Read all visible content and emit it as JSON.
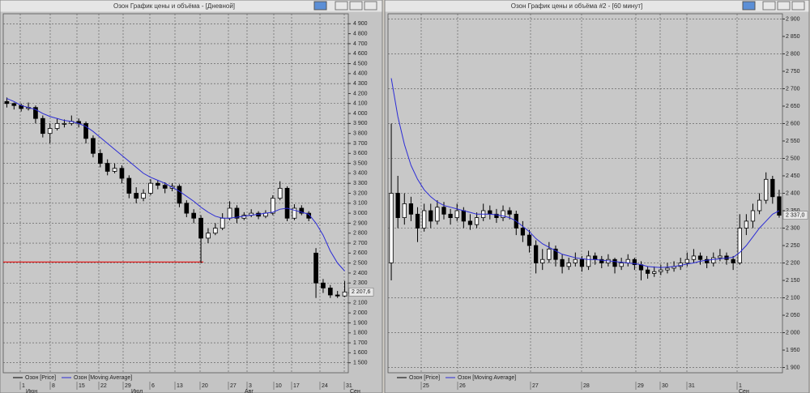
{
  "windows": [
    {
      "title": "Озон График цены и объёма - [Дневной]",
      "chart": {
        "type": "candlestick",
        "ylim": [
          1400,
          5000
        ],
        "yticks": [
          {
            "value": 4900,
            "label": "4 900"
          },
          {
            "value": 4800,
            "label": "4 800"
          },
          {
            "value": 4700,
            "label": "4 700"
          },
          {
            "value": 4600,
            "label": "4 600"
          },
          {
            "value": 4500,
            "label": "4 500"
          },
          {
            "value": 4400,
            "label": "4 400"
          },
          {
            "value": 4300,
            "label": "4 300"
          },
          {
            "value": 4200,
            "label": "4 200"
          },
          {
            "value": 4100,
            "label": "4 100"
          },
          {
            "value": 4000,
            "label": "4 000"
          },
          {
            "value": 3900,
            "label": "3 900"
          },
          {
            "value": 3800,
            "label": "3 800"
          },
          {
            "value": 3700,
            "label": "3 700"
          },
          {
            "value": 3600,
            "label": "3 600"
          },
          {
            "value": 3500,
            "label": "3 500"
          },
          {
            "value": 3400,
            "label": "3 400"
          },
          {
            "value": 3300,
            "label": "3 300"
          },
          {
            "value": 3200,
            "label": "3 200"
          },
          {
            "value": 3100,
            "label": "3 100"
          },
          {
            "value": 3000,
            "label": "3 000"
          },
          {
            "value": 2900,
            "label": "2 900"
          },
          {
            "value": 2800,
            "label": "2 800"
          },
          {
            "value": 2700,
            "label": "2 700"
          },
          {
            "value": 2600,
            "label": "2 600"
          },
          {
            "value": 2500,
            "label": "2 500"
          },
          {
            "value": 2400,
            "label": "2 400"
          },
          {
            "value": 2300,
            "label": "2 300"
          },
          {
            "value": 2200,
            "label": "2 200"
          },
          {
            "value": 2100,
            "label": "2 100"
          },
          {
            "value": 2000,
            "label": "2 000"
          },
          {
            "value": 1900,
            "label": "1 900"
          },
          {
            "value": 1800,
            "label": "1 800"
          },
          {
            "value": 1700,
            "label": "1 700"
          },
          {
            "value": 1600,
            "label": "1 600"
          },
          {
            "value": 1500,
            "label": "1 500"
          }
        ],
        "candles": [
          [
            4120,
            4160,
            4060,
            4100
          ],
          [
            4100,
            4110,
            4040,
            4080
          ],
          [
            4080,
            4100,
            4020,
            4050
          ],
          [
            4050,
            4110,
            4030,
            4060
          ],
          [
            4060,
            4080,
            3900,
            3950
          ],
          [
            3950,
            3980,
            3760,
            3800
          ],
          [
            3800,
            3900,
            3700,
            3850
          ],
          [
            3850,
            3950,
            3830,
            3900
          ],
          [
            3900,
            3940,
            3860,
            3900
          ],
          [
            3900,
            3980,
            3880,
            3920
          ],
          [
            3920,
            3950,
            3860,
            3900
          ],
          [
            3900,
            3920,
            3700,
            3750
          ],
          [
            3750,
            3780,
            3560,
            3600
          ],
          [
            3600,
            3640,
            3460,
            3500
          ],
          [
            3500,
            3540,
            3380,
            3420
          ],
          [
            3420,
            3500,
            3400,
            3450
          ],
          [
            3450,
            3480,
            3300,
            3350
          ],
          [
            3350,
            3380,
            3150,
            3200
          ],
          [
            3200,
            3260,
            3100,
            3150
          ],
          [
            3150,
            3240,
            3120,
            3200
          ],
          [
            3200,
            3340,
            3180,
            3300
          ],
          [
            3300,
            3330,
            3240,
            3280
          ],
          [
            3280,
            3310,
            3200,
            3250
          ],
          [
            3250,
            3300,
            3220,
            3270
          ],
          [
            3270,
            3290,
            3060,
            3100
          ],
          [
            3100,
            3130,
            2960,
            3000
          ],
          [
            3000,
            3040,
            2900,
            2950
          ],
          [
            2950,
            2980,
            2500,
            2750
          ],
          [
            2750,
            2850,
            2700,
            2800
          ],
          [
            2800,
            2900,
            2780,
            2850
          ],
          [
            2850,
            3000,
            2830,
            2950
          ],
          [
            2950,
            3120,
            2930,
            3050
          ],
          [
            3050,
            3080,
            2900,
            2950
          ],
          [
            2950,
            3010,
            2930,
            2980
          ],
          [
            2980,
            3040,
            2960,
            3000
          ],
          [
            3000,
            3020,
            2940,
            2970
          ],
          [
            2970,
            3030,
            2950,
            3000
          ],
          [
            3000,
            3180,
            2980,
            3150
          ],
          [
            3150,
            3320,
            3130,
            3250
          ],
          [
            3250,
            3270,
            2920,
            2950
          ],
          [
            2950,
            3090,
            2930,
            3050
          ],
          [
            3050,
            3080,
            2980,
            3000
          ],
          [
            3000,
            3020,
            2920,
            2950
          ],
          [
            2600,
            2650,
            2150,
            2300
          ],
          [
            2300,
            2340,
            2200,
            2250
          ],
          [
            2250,
            2280,
            2150,
            2180
          ],
          [
            2180,
            2220,
            2150,
            2170
          ],
          [
            2170,
            2320,
            2160,
            2210
          ]
        ],
        "moving_average": [
          4150,
          4120,
          4080,
          4060,
          4040,
          4000,
          3970,
          3950,
          3930,
          3920,
          3900,
          3870,
          3820,
          3760,
          3700,
          3640,
          3580,
          3520,
          3460,
          3400,
          3360,
          3330,
          3300,
          3260,
          3220,
          3170,
          3120,
          3060,
          3010,
          2970,
          2950,
          2950,
          2960,
          2970,
          2980,
          2990,
          3000,
          3010,
          3040,
          3050,
          3030,
          3010,
          2990,
          2900,
          2780,
          2620,
          2500,
          2420
        ],
        "level_line": {
          "value": 2510,
          "color": "#e02020"
        },
        "series": [
          {
            "name": "Озон [Price]",
            "color": "#000000"
          },
          {
            "name": "Озон [Moving Average]",
            "color": "#2b2bd6"
          }
        ],
        "x_labels": [
          "1",
          "8",
          "15",
          "22",
          "29",
          "6",
          "13",
          "20",
          "27",
          "3",
          "10",
          "17",
          "24",
          "31"
        ],
        "month_labels": [
          "Июн",
          "Июл",
          "Авг",
          "Сен"
        ],
        "last_price_label": "2 207,6"
      }
    },
    {
      "title": "Озон График цены и объёма #2 - [60 минут]",
      "chart": {
        "type": "candlestick",
        "ylim": [
          1885,
          2915
        ],
        "yticks": [
          {
            "value": 2900,
            "label": "2 900"
          },
          {
            "value": 2850,
            "label": "2 850"
          },
          {
            "value": 2800,
            "label": "2 800"
          },
          {
            "value": 2750,
            "label": "2 750"
          },
          {
            "value": 2700,
            "label": "2 700"
          },
          {
            "value": 2650,
            "label": "2 650"
          },
          {
            "value": 2600,
            "label": "2 600"
          },
          {
            "value": 2550,
            "label": "2 550"
          },
          {
            "value": 2500,
            "label": "2 500"
          },
          {
            "value": 2450,
            "label": "2 450"
          },
          {
            "value": 2400,
            "label": "2 400"
          },
          {
            "value": 2350,
            "label": "2 350"
          },
          {
            "value": 2300,
            "label": "2 300"
          },
          {
            "value": 2250,
            "label": "2 250"
          },
          {
            "value": 2200,
            "label": "2 200"
          },
          {
            "value": 2150,
            "label": "2 150"
          },
          {
            "value": 2100,
            "label": "2 100"
          },
          {
            "value": 2050,
            "label": "2 050"
          },
          {
            "value": 2000,
            "label": "2 000"
          },
          {
            "value": 1950,
            "label": "1 950"
          },
          {
            "value": 1900,
            "label": "1 900"
          }
        ],
        "candles": [
          [
            2200,
            2600,
            2150,
            2400
          ],
          [
            2400,
            2450,
            2300,
            2330
          ],
          [
            2330,
            2400,
            2310,
            2370
          ],
          [
            2370,
            2390,
            2320,
            2340
          ],
          [
            2340,
            2360,
            2260,
            2300
          ],
          [
            2300,
            2370,
            2290,
            2350
          ],
          [
            2350,
            2370,
            2300,
            2320
          ],
          [
            2320,
            2380,
            2310,
            2360
          ],
          [
            2360,
            2375,
            2325,
            2340
          ],
          [
            2340,
            2355,
            2310,
            2330
          ],
          [
            2330,
            2370,
            2320,
            2350
          ],
          [
            2350,
            2360,
            2300,
            2320
          ],
          [
            2320,
            2340,
            2295,
            2310
          ],
          [
            2310,
            2345,
            2300,
            2330
          ],
          [
            2330,
            2370,
            2320,
            2350
          ],
          [
            2350,
            2365,
            2325,
            2340
          ],
          [
            2340,
            2355,
            2315,
            2330
          ],
          [
            2330,
            2365,
            2320,
            2350
          ],
          [
            2350,
            2360,
            2325,
            2340
          ],
          [
            2340,
            2350,
            2280,
            2300
          ],
          [
            2300,
            2320,
            2260,
            2280
          ],
          [
            2280,
            2295,
            2230,
            2250
          ],
          [
            2250,
            2265,
            2170,
            2200
          ],
          [
            2200,
            2240,
            2180,
            2210
          ],
          [
            2210,
            2260,
            2200,
            2240
          ],
          [
            2240,
            2250,
            2190,
            2210
          ],
          [
            2210,
            2225,
            2170,
            2190
          ],
          [
            2190,
            2215,
            2180,
            2200
          ],
          [
            2200,
            2230,
            2190,
            2210
          ],
          [
            2210,
            2220,
            2175,
            2190
          ],
          [
            2190,
            2235,
            2180,
            2220
          ],
          [
            2220,
            2230,
            2195,
            2210
          ],
          [
            2210,
            2220,
            2185,
            2200
          ],
          [
            2200,
            2225,
            2190,
            2210
          ],
          [
            2210,
            2215,
            2170,
            2190
          ],
          [
            2190,
            2215,
            2180,
            2200
          ],
          [
            2200,
            2225,
            2190,
            2210
          ],
          [
            2210,
            2215,
            2180,
            2195
          ],
          [
            2195,
            2205,
            2150,
            2180
          ],
          [
            2180,
            2190,
            2155,
            2170
          ],
          [
            2170,
            2190,
            2160,
            2175
          ],
          [
            2175,
            2195,
            2165,
            2180
          ],
          [
            2180,
            2200,
            2170,
            2185
          ],
          [
            2185,
            2205,
            2175,
            2190
          ],
          [
            2190,
            2215,
            2180,
            2200
          ],
          [
            2200,
            2230,
            2190,
            2210
          ],
          [
            2210,
            2240,
            2200,
            2220
          ],
          [
            2220,
            2230,
            2195,
            2210
          ],
          [
            2210,
            2220,
            2185,
            2200
          ],
          [
            2200,
            2230,
            2190,
            2215
          ],
          [
            2215,
            2240,
            2205,
            2220
          ],
          [
            2220,
            2230,
            2195,
            2210
          ],
          [
            2210,
            2220,
            2180,
            2200
          ],
          [
            2200,
            2340,
            2195,
            2300
          ],
          [
            2300,
            2340,
            2280,
            2320
          ],
          [
            2320,
            2370,
            2300,
            2350
          ],
          [
            2350,
            2400,
            2340,
            2380
          ],
          [
            2380,
            2460,
            2370,
            2440
          ],
          [
            2440,
            2450,
            2370,
            2390
          ],
          [
            2390,
            2410,
            2330,
            2337
          ]
        ],
        "moving_average": [
          2730,
          2620,
          2540,
          2480,
          2440,
          2410,
          2390,
          2375,
          2365,
          2360,
          2355,
          2350,
          2345,
          2340,
          2340,
          2340,
          2338,
          2335,
          2330,
          2320,
          2305,
          2290,
          2270,
          2255,
          2245,
          2235,
          2225,
          2220,
          2215,
          2212,
          2210,
          2210,
          2208,
          2206,
          2204,
          2202,
          2200,
          2198,
          2195,
          2190,
          2188,
          2187,
          2188,
          2190,
          2193,
          2197,
          2200,
          2205,
          2208,
          2210,
          2212,
          2214,
          2216,
          2230,
          2250,
          2275,
          2300,
          2320,
          2340,
          2350
        ],
        "series": [
          {
            "name": "Озон [Price]",
            "color": "#000000"
          },
          {
            "name": "Озон [Moving Average]",
            "color": "#2b2bd6"
          }
        ],
        "x_labels": [
          "25",
          "26",
          "27",
          "28",
          "29",
          "30",
          "31",
          "1"
        ],
        "month_labels": [
          "Сен"
        ],
        "last_price_label": "2 337,0"
      }
    }
  ]
}
